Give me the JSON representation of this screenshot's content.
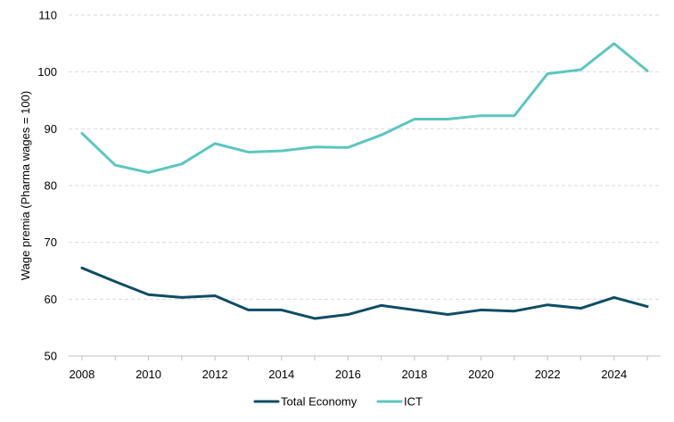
{
  "chart_data": {
    "type": "line",
    "title": "",
    "xlabel": "",
    "ylabel": "Wage premia (Pharma wages = 100)",
    "ylim": [
      50,
      110
    ],
    "yticks": [
      50,
      60,
      70,
      80,
      90,
      100,
      110
    ],
    "xlim": [
      2007.6,
      2025.4
    ],
    "xticks": [
      2008,
      2010,
      2012,
      2014,
      2016,
      2018,
      2020,
      2022,
      2024
    ],
    "grid": true,
    "legend_position": "bottom",
    "x": [
      2008,
      2009,
      2010,
      2011,
      2012,
      2013,
      2014,
      2015,
      2016,
      2017,
      2018,
      2019,
      2020,
      2021,
      2022,
      2023,
      2024,
      2025
    ],
    "series": [
      {
        "name": "Total Economy",
        "color": "#0e4d64",
        "values": [
          65.5,
          63.1,
          60.8,
          60.3,
          60.6,
          58.1,
          58.1,
          56.6,
          57.3,
          58.9,
          58.1,
          57.3,
          58.1,
          57.9,
          59.0,
          58.4,
          60.3,
          58.7
        ]
      },
      {
        "name": "ICT",
        "color": "#5bc6c0",
        "values": [
          89.2,
          83.6,
          82.3,
          83.8,
          87.4,
          85.9,
          86.1,
          86.8,
          86.7,
          88.9,
          91.7,
          91.7,
          92.3,
          92.3,
          99.7,
          100.4,
          105.0,
          100.2
        ]
      }
    ]
  }
}
